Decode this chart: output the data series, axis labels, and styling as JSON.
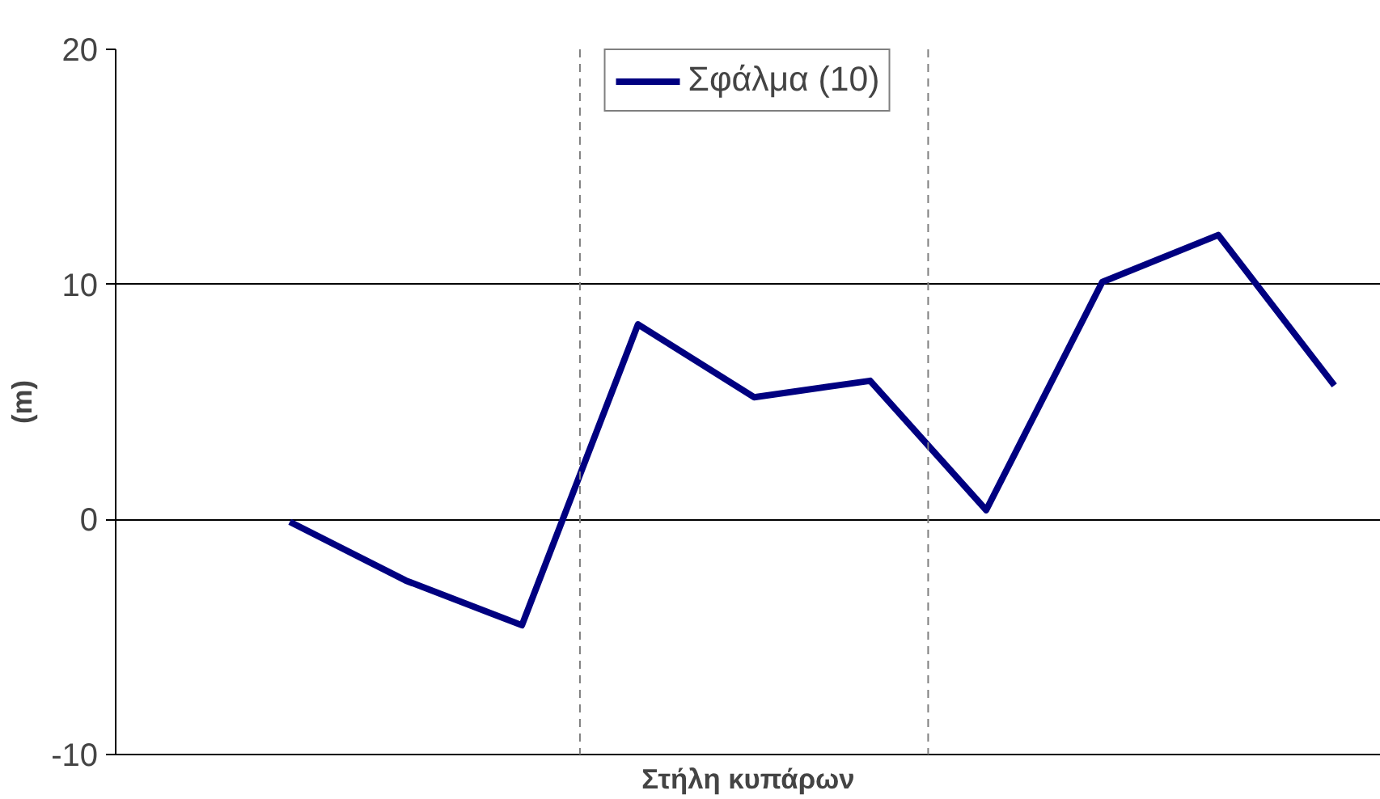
{
  "chart_data": {
    "type": "line",
    "xlabel": "Στήλη κυπάρων",
    "ylabel": "(m)",
    "categories": [
      null,
      null,
      null,
      null,
      null,
      null,
      null,
      null,
      null,
      null
    ],
    "series": [
      {
        "name": "Σφάλμα (10)",
        "color": "#000080",
        "values": [
          -0.1,
          -2.6,
          -4.5,
          8.3,
          5.2,
          5.9,
          0.4,
          10.1,
          12.1,
          5.7
        ]
      }
    ],
    "ylim": [
      -10,
      20
    ],
    "yticks": [
      -10,
      0,
      10,
      20
    ],
    "grid": "y",
    "legend": "top",
    "marker": "none",
    "line_style": "solid"
  }
}
